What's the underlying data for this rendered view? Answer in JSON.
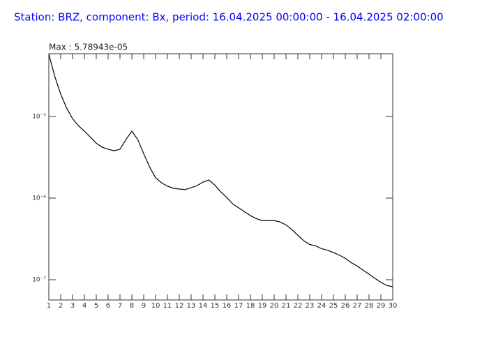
{
  "chart_data": {
    "type": "line",
    "title": "Station: BRZ, component: Bx, period: 16.04.2025 00:00:00 - 16.04.2025 02:00:00",
    "annotation": "Max : 5.78943e-05",
    "log_y": true,
    "xlim": [
      1,
      30
    ],
    "xticks": [
      1,
      2,
      3,
      4,
      5,
      6,
      7,
      8,
      9,
      10,
      11,
      12,
      13,
      14,
      15,
      16,
      17,
      18,
      19,
      20,
      21,
      22,
      23,
      24,
      25,
      26,
      27,
      28,
      29,
      30
    ],
    "ylim": [
      5.65e-08,
      5.87e-05
    ],
    "yticks": [
      {
        "value": 1e-05,
        "label": "10⁻⁵"
      },
      {
        "value": 1e-06,
        "label": "10⁻⁶"
      },
      {
        "value": 1e-07,
        "label": "10⁻⁷"
      }
    ],
    "x": [
      1,
      1.5,
      2,
      2.5,
      3,
      3.5,
      4,
      4.5,
      5,
      5.5,
      6,
      6.5,
      7,
      7.5,
      8,
      8.5,
      9,
      9.5,
      10,
      10.5,
      11,
      11.5,
      12,
      12.5,
      13,
      13.5,
      14,
      14.5,
      15,
      15.5,
      16,
      16.5,
      17,
      17.5,
      18,
      18.5,
      19,
      19.5,
      20,
      20.5,
      21,
      21.5,
      22,
      22.5,
      23,
      23.5,
      24,
      24.5,
      25,
      25.5,
      26,
      26.5,
      27,
      27.5,
      28,
      28.5,
      29,
      29.5,
      30
    ],
    "series": [
      {
        "color": "#000000",
        "values": [
          5.79e-05,
          3.1e-05,
          1.88e-05,
          1.27e-05,
          9.4e-06,
          7.7e-06,
          6.6e-06,
          5.6e-06,
          4.7e-06,
          4.2e-06,
          3.97e-06,
          3.8e-06,
          3.97e-06,
          5.2e-06,
          6.6e-06,
          5.2e-06,
          3.5e-06,
          2.4e-06,
          1.77e-06,
          1.54e-06,
          1.4e-06,
          1.32e-06,
          1.29e-06,
          1.27e-06,
          1.34e-06,
          1.42e-06,
          1.57e-06,
          1.67e-06,
          1.44e-06,
          1.19e-06,
          1.02e-06,
          8.5e-07,
          7.6e-07,
          6.8e-07,
          6.1e-07,
          5.6e-07,
          5.3e-07,
          5.3e-07,
          5.3e-07,
          5.1e-07,
          4.7e-07,
          4.1e-07,
          3.5e-07,
          3e-07,
          2.7e-07,
          2.6e-07,
          2.4e-07,
          2.3e-07,
          2.15e-07,
          2e-07,
          1.83e-07,
          1.62e-07,
          1.47e-07,
          1.31e-07,
          1.17e-07,
          1.04e-07,
          9.3e-08,
          8.5e-08,
          8.2e-08
        ]
      }
    ]
  }
}
